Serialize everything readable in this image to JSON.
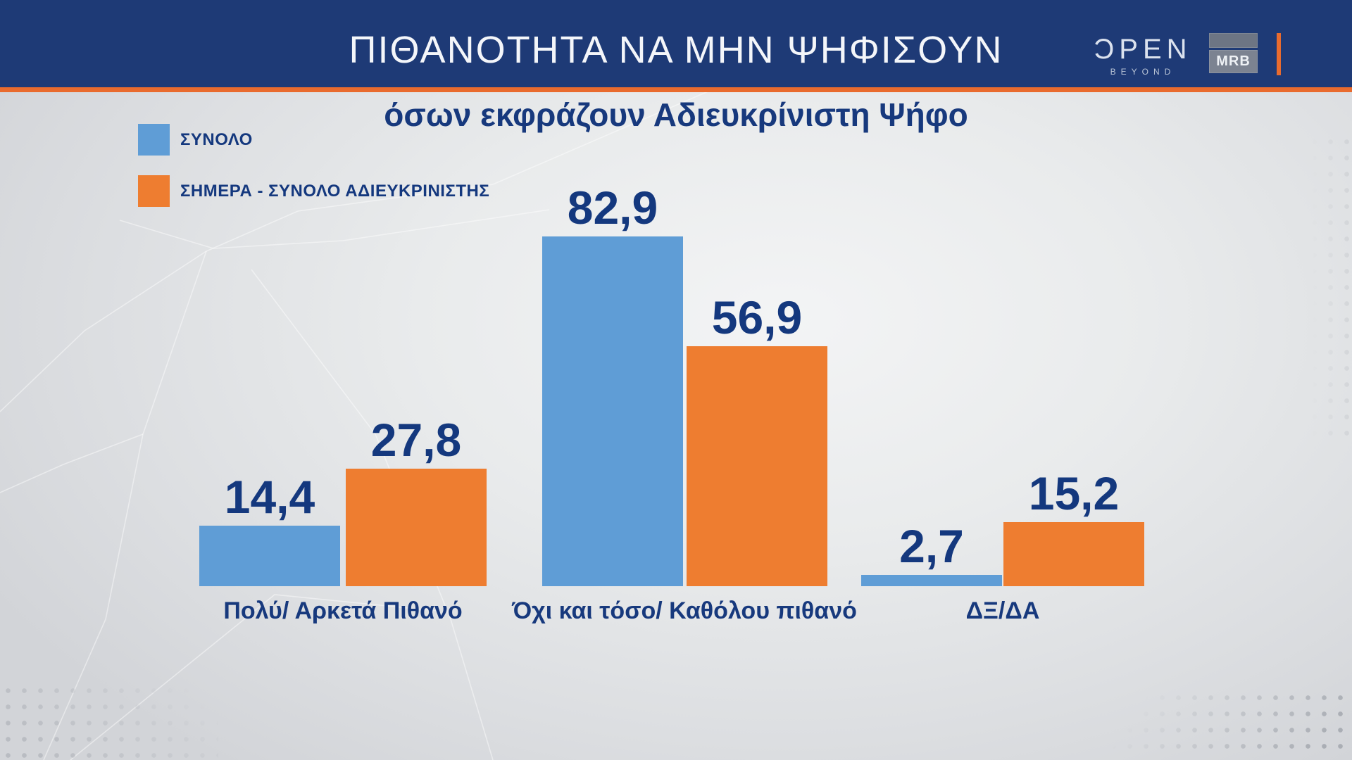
{
  "header": {
    "title": "ΠΙΘΑΝΟΤΗΤΑ ΝΑ ΜΗΝ ΨΗΦΙΣΟΥΝ",
    "open_logo": {
      "word": "ƆPEN",
      "sub": "BEYOND"
    },
    "mrb_logo": {
      "text": "MRB"
    }
  },
  "subtitle": "όσων εκφράζουν Αδιευκρίνιστη Ψήφο",
  "legend": [
    {
      "label": "ΣΥΝΟΛΟ",
      "color": "#5f9dd6"
    },
    {
      "label": "ΣΗΜΕΡΑ - ΣΥΝΟΛΟ ΑΔΙΕΥΚΡΙΝΙΣΤΗΣ",
      "color": "#ee7d30"
    }
  ],
  "chart_data": {
    "type": "bar",
    "title": "ΠΙΘΑΝΟΤΗΤΑ ΝΑ ΜΗΝ ΨΗΦΙΣΟΥΝ",
    "subtitle": "όσων εκφράζουν Αδιευκρίνιστη Ψήφο",
    "categories": [
      "Πολύ/ Αρκετά Πιθανό",
      "Όχι και τόσο/ Καθόλου πιθανό",
      "ΔΞ/ΔΑ"
    ],
    "series": [
      {
        "name": "ΣΥΝΟΛΟ",
        "color": "#5f9dd6",
        "values": [
          14.4,
          82.9,
          2.7
        ],
        "display": [
          "14,4",
          "82,9",
          "2,7"
        ]
      },
      {
        "name": "ΣΗΜΕΡΑ - ΣΥΝΟΛΟ ΑΔΙΕΥΚΡΙΝΙΣΤΗΣ",
        "color": "#ee7d30",
        "values": [
          27.8,
          56.9,
          15.2
        ],
        "display": [
          "27,8",
          "56,9",
          "15,2"
        ]
      }
    ],
    "ylim": [
      0,
      100
    ],
    "grid": false,
    "value_labels": "above-bars, comma decimals",
    "legend_position": "top-left"
  },
  "colors": {
    "header_navy": "#1e3a76",
    "divider_orange": "#e96b2e",
    "bar_blue": "#5f9dd6",
    "bar_orange": "#ee7d30",
    "text_navy": "#14387e",
    "background_gray": "#e0e2e5"
  }
}
